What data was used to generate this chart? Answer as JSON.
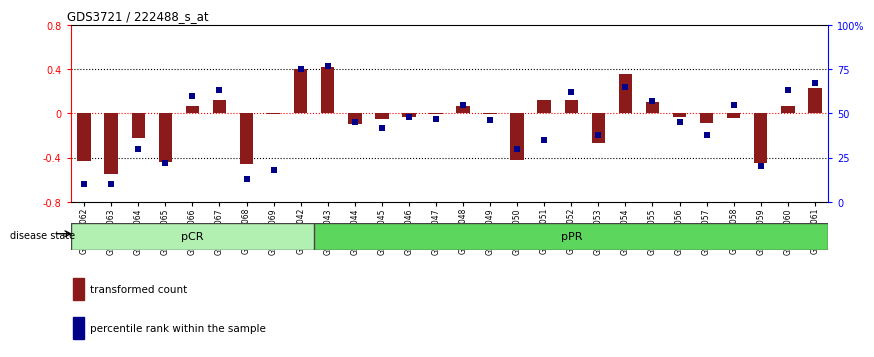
{
  "title": "GDS3721 / 222488_s_at",
  "samples": [
    "GSM559062",
    "GSM559063",
    "GSM559064",
    "GSM559065",
    "GSM559066",
    "GSM559067",
    "GSM559068",
    "GSM559069",
    "GSM559042",
    "GSM559043",
    "GSM559044",
    "GSM559045",
    "GSM559046",
    "GSM559047",
    "GSM559048",
    "GSM559049",
    "GSM559050",
    "GSM559051",
    "GSM559052",
    "GSM559053",
    "GSM559054",
    "GSM559055",
    "GSM559056",
    "GSM559057",
    "GSM559058",
    "GSM559059",
    "GSM559060",
    "GSM559061"
  ],
  "transformed_count": [
    -0.43,
    -0.55,
    -0.22,
    -0.44,
    0.07,
    0.12,
    -0.46,
    -0.01,
    0.4,
    0.42,
    -0.1,
    -0.05,
    -0.03,
    -0.01,
    0.07,
    -0.01,
    -0.42,
    0.12,
    0.12,
    -0.27,
    0.36,
    0.1,
    -0.03,
    -0.09,
    -0.04,
    -0.45,
    0.07,
    0.23
  ],
  "percentile_rank": [
    10,
    10,
    30,
    22,
    60,
    63,
    13,
    18,
    75,
    77,
    45,
    42,
    48,
    47,
    55,
    46,
    30,
    35,
    62,
    38,
    65,
    57,
    45,
    38,
    55,
    20,
    63,
    67
  ],
  "pCR_count": 9,
  "pPR_count": 19,
  "bar_color": "#8B1A1A",
  "dot_color": "#00008B",
  "ylim_left": [
    -0.8,
    0.8
  ],
  "ylim_right": [
    0,
    100
  ],
  "yticks_left": [
    -0.8,
    -0.4,
    0.0,
    0.4,
    0.8
  ],
  "yticks_right": [
    0,
    25,
    50,
    75,
    100
  ],
  "ytick_labels_right": [
    "0",
    "25",
    "50",
    "75",
    "100%"
  ],
  "dotted_lines_black": [
    -0.4,
    0.4
  ],
  "dotted_line_red": 0.0,
  "legend_transformed": "transformed count",
  "legend_percentile": "percentile rank within the sample",
  "group_label": "disease state",
  "pCR_label": "pCR",
  "pPR_label": "pPR",
  "pCR_color": "#b2f0b2",
  "pPR_color": "#5cd65c",
  "background_color": "#ffffff"
}
